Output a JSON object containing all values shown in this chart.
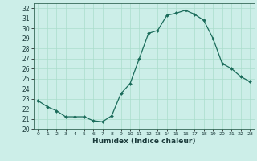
{
  "x": [
    0,
    1,
    2,
    3,
    4,
    5,
    6,
    7,
    8,
    9,
    10,
    11,
    12,
    13,
    14,
    15,
    16,
    17,
    18,
    19,
    20,
    21,
    22,
    23
  ],
  "y": [
    22.8,
    22.2,
    21.8,
    21.2,
    21.2,
    21.2,
    20.8,
    20.7,
    21.3,
    23.5,
    24.5,
    27.0,
    29.5,
    29.8,
    31.3,
    31.5,
    31.8,
    31.4,
    30.8,
    29.0,
    26.5,
    26.0,
    25.2,
    24.7
  ],
  "line_color": "#1a6b5a",
  "marker": "D",
  "marker_size": 2.0,
  "bg_color": "#cceee8",
  "grid_color": "#aaddcc",
  "xlabel": "Humidex (Indice chaleur)",
  "ylim": [
    20,
    32.5
  ],
  "xlim": [
    -0.5,
    23.5
  ],
  "yticks": [
    20,
    21,
    22,
    23,
    24,
    25,
    26,
    27,
    28,
    29,
    30,
    31,
    32
  ],
  "xticks": [
    0,
    1,
    2,
    3,
    4,
    5,
    6,
    7,
    8,
    9,
    10,
    11,
    12,
    13,
    14,
    15,
    16,
    17,
    18,
    19,
    20,
    21,
    22,
    23
  ],
  "tick_color": "#1a3a3a",
  "spine_color": "#336655"
}
